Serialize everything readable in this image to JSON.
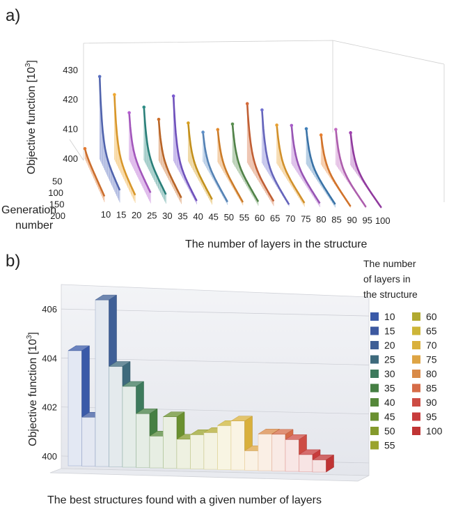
{
  "panel_a": {
    "label": "a)",
    "chart_data": {
      "type": "line",
      "zlabel_text": "Objective function [10",
      "zlabel_exp": "3",
      "zlabel_close": "]",
      "xlabel": "The number of layers in the structure",
      "ylabel_line1": "Generation",
      "ylabel_line2": "number",
      "z_ticks": [
        "400",
        "410",
        "420",
        "430"
      ],
      "gen_ticks": [
        "50",
        "100",
        "150",
        "200"
      ],
      "zlim": [
        400,
        430
      ],
      "gen_range": [
        1,
        200
      ],
      "categories": [
        "10",
        "15",
        "20",
        "25",
        "30",
        "35",
        "40",
        "45",
        "50",
        "55",
        "60",
        "65",
        "70",
        "75",
        "80",
        "85",
        "90",
        "95",
        "100"
      ],
      "series_colors": [
        "#e27a32",
        "#5a6fc0",
        "#f0a830",
        "#b45fd0",
        "#2f8d86",
        "#cc6f2a",
        "#7b5ad0",
        "#d9a020",
        "#5e90c8",
        "#e2892c",
        "#5a9050",
        "#d56a3a",
        "#7070d0",
        "#e8a030",
        "#a85ec8",
        "#3f7fb8",
        "#e88030",
        "#c068c0",
        "#a040b0"
      ],
      "series": [
        {
          "peak": 403.5,
          "final": 402.0
        },
        {
          "peak": 428.0,
          "final": 404.0
        },
        {
          "peak": 422.0,
          "final": 402.5
        },
        {
          "peak": 416.0,
          "final": 403.5
        },
        {
          "peak": 418.0,
          "final": 403.0
        },
        {
          "peak": 414.0,
          "final": 402.0
        },
        {
          "peak": 422.0,
          "final": 401.0
        },
        {
          "peak": 413.0,
          "final": 401.7
        },
        {
          "peak": 410.0,
          "final": 401.0
        },
        {
          "peak": 411.0,
          "final": 401.0
        },
        {
          "peak": 413.0,
          "final": 401.3
        },
        {
          "peak": 420.0,
          "final": 401.5
        },
        {
          "peak": 418.0,
          "final": 400.5
        },
        {
          "peak": 413.0,
          "final": 401.2
        },
        {
          "peak": 413.0,
          "final": 401.2
        },
        {
          "peak": 412.0,
          "final": 401.0
        },
        {
          "peak": 410.0,
          "final": 400.4
        },
        {
          "peak": 412.0,
          "final": 400.3
        },
        {
          "peak": 411.0,
          "final": 400.2
        }
      ]
    }
  },
  "panel_b": {
    "label": "b)",
    "chart_data": {
      "type": "bar",
      "ylabel_text": "Objective function [10",
      "ylabel_exp": "3",
      "ylabel_close": "]",
      "xlabel": "The best structures found with a given number of layers",
      "y_ticks": [
        "400",
        "402",
        "404",
        "406"
      ],
      "ylim": [
        399.6,
        407.0
      ],
      "legend_title": [
        "The number",
        "of layers in",
        "the structure"
      ],
      "legend_position": "right",
      "categories": [
        "10",
        "15",
        "20",
        "25",
        "30",
        "35",
        "40",
        "45",
        "50",
        "55",
        "60",
        "65",
        "70",
        "75",
        "80",
        "85",
        "90",
        "95",
        "100"
      ],
      "values": [
        404.3,
        401.6,
        406.4,
        403.7,
        402.9,
        401.8,
        400.9,
        401.7,
        400.8,
        401.0,
        401.1,
        401.4,
        401.6,
        400.4,
        401.1,
        401.1,
        400.9,
        400.3,
        400.1
      ],
      "colors": [
        "#3a5aa8",
        "#3d59a0",
        "#3f5f96",
        "#3e6a7c",
        "#3d7a5c",
        "#467f44",
        "#55883a",
        "#6a9030",
        "#849a2c",
        "#9aa32c",
        "#b1a930",
        "#cdb538",
        "#d9b03c",
        "#dea444",
        "#d98a48",
        "#d66c48",
        "#cd4c44",
        "#c83c3c",
        "#c03434"
      ]
    }
  }
}
